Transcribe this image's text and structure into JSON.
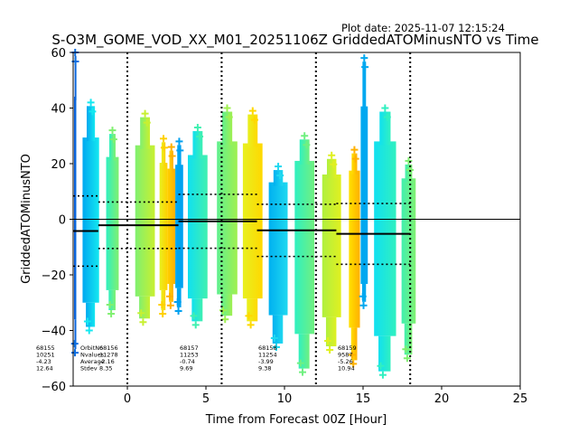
{
  "plot_date": "Plot date: 2025-11-07 12:15:24",
  "chart_data": {
    "type": "scatter",
    "title": "S-O3M_GOME_VOD_XX_M01_20251106Z GriddedATOMinusNTO vs Time",
    "xlabel": "Time from Forecast 00Z [Hour]",
    "ylabel": "GriddedATOMinusNTO",
    "xlim": [
      -3.45,
      25
    ],
    "ylim": [
      -60,
      60
    ],
    "xticks": [
      0,
      5,
      10,
      15,
      20,
      25
    ],
    "yticks": [
      -60,
      -40,
      -20,
      0,
      20,
      40,
      60
    ],
    "grid": false,
    "zero_line": 0,
    "forecast_markers_hours": [
      0,
      6,
      12,
      18
    ],
    "strips": [
      {
        "x0": -3.45,
        "x1": -3.25,
        "ymin": -48,
        "ymax": 63,
        "c0": "#0a5bd8",
        "c1": "#0a6ee0"
      },
      {
        "x0": -2.85,
        "x1": -1.8,
        "ymin": -40,
        "ymax": 42,
        "c0": "#00a8f0",
        "c1": "#14e8f0"
      },
      {
        "x0": -1.35,
        "x1": -0.55,
        "ymin": -34,
        "ymax": 32,
        "c0": "#30f0c0",
        "c1": "#80f070"
      },
      {
        "x0": 0.5,
        "x1": 1.75,
        "ymin": -37,
        "ymax": 38,
        "c0": "#80f070",
        "c1": "#c8f030"
      },
      {
        "x0": 2.05,
        "x1": 2.55,
        "ymin": -34,
        "ymax": 29,
        "c0": "#e8f020",
        "c1": "#ffd000"
      },
      {
        "x0": 2.55,
        "x1": 3.05,
        "ymin": -31,
        "ymax": 26,
        "c0": "#ffd000",
        "c1": "#ffb000"
      },
      {
        "x0": 3.05,
        "x1": 3.55,
        "ymin": -33,
        "ymax": 28,
        "c0": "#00a8f0",
        "c1": "#00a0f0"
      },
      {
        "x0": 3.85,
        "x1": 5.1,
        "ymin": -38,
        "ymax": 33,
        "c0": "#10e0f0",
        "c1": "#40f0b0"
      },
      {
        "x0": 5.7,
        "x1": 7.0,
        "ymin": -36,
        "ymax": 40,
        "c0": "#60f090",
        "c1": "#a0f050"
      },
      {
        "x0": 7.35,
        "x1": 8.6,
        "ymin": -38,
        "ymax": 39,
        "c0": "#e8f020",
        "c1": "#ffd800"
      },
      {
        "x0": 9.0,
        "x1": 10.2,
        "ymin": -46,
        "ymax": 19,
        "c0": "#00b0f0",
        "c1": "#20d8f0"
      },
      {
        "x0": 10.65,
        "x1": 11.9,
        "ymin": -55,
        "ymax": 30,
        "c0": "#30f0c0",
        "c1": "#70f080"
      },
      {
        "x0": 12.4,
        "x1": 13.6,
        "ymin": -47,
        "ymax": 23,
        "c0": "#b0f040",
        "c1": "#e0f020"
      },
      {
        "x0": 14.1,
        "x1": 14.8,
        "ymin": -52,
        "ymax": 25,
        "c0": "#ffe000",
        "c1": "#ffb000"
      },
      {
        "x0": 14.85,
        "x1": 15.3,
        "ymin": -31,
        "ymax": 58,
        "c0": "#00a8f0",
        "c1": "#00a8f0"
      },
      {
        "x0": 15.7,
        "x1": 17.1,
        "ymin": -56,
        "ymax": 40,
        "c0": "#10e0f0",
        "c1": "#30f0c0"
      },
      {
        "x0": 17.45,
        "x1": 18.35,
        "ymin": -50,
        "ymax": 21,
        "c0": "#40f0b0",
        "c1": "#80f070"
      }
    ],
    "orbits": [
      {
        "orbit": "68155",
        "nvalues": "10251",
        "average": "-4.23",
        "stdev": "12.64",
        "x0": -3.45,
        "x1": -1.85,
        "mean": -4.23,
        "sd": 12.64
      },
      {
        "orbit": "68156",
        "nvalues": "11278",
        "average": "-2.16",
        "stdev": "8.35",
        "x0": -1.85,
        "x1": 3.25,
        "mean": -2.16,
        "sd": 8.35
      },
      {
        "orbit": "68157",
        "nvalues": "11253",
        "average": "-0.74",
        "stdev": "9.69",
        "x0": 3.25,
        "x1": 8.25,
        "mean": -0.74,
        "sd": 9.69
      },
      {
        "orbit": "68158",
        "nvalues": "11254",
        "average": "-3.99",
        "stdev": "9.38",
        "x0": 8.25,
        "x1": 13.3,
        "mean": -3.99,
        "sd": 9.38
      },
      {
        "orbit": "68159",
        "nvalues": "9587",
        "average": "-5.26",
        "stdev": "10.94",
        "x0": 13.3,
        "x1": 18.0,
        "mean": -5.26,
        "sd": 10.94
      }
    ],
    "stat_row_labels": [
      "OrbitNo",
      "Nvalues",
      "Average",
      "Stdev"
    ]
  }
}
